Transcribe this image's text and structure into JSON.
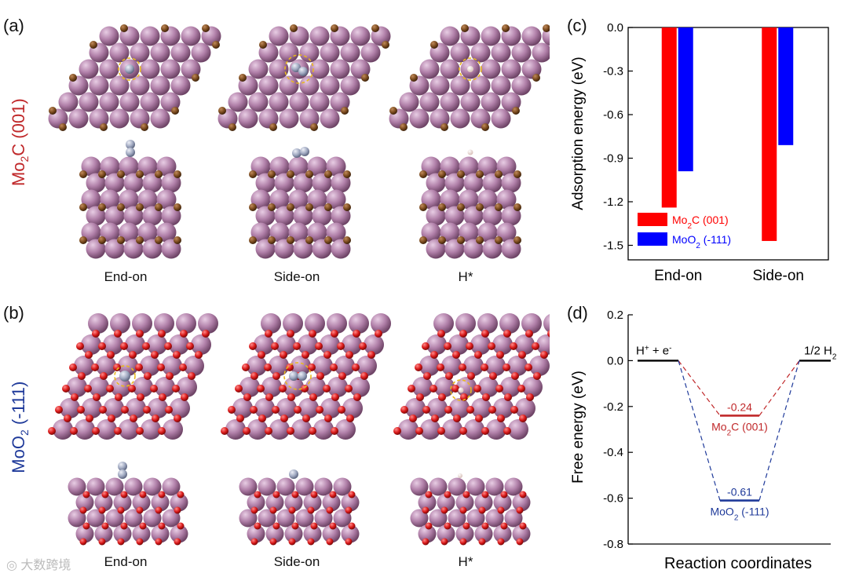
{
  "panels": {
    "a_label": "(a)",
    "b_label": "(b)",
    "c_label": "(c)",
    "d_label": "(d)"
  },
  "structures": {
    "mo2c_title_main": "Mo",
    "mo2c_title_sub": "2",
    "mo2c_title_rest": "C (001)",
    "moo2_title_main": "MoO",
    "moo2_title_sub": "2",
    "moo2_title_rest": " (-111)",
    "captions_a": [
      "End-on",
      "Side-on",
      "H*"
    ],
    "captions_b": [
      "End-on",
      "Side-on",
      "H*"
    ]
  },
  "colors": {
    "mo2c": "#ff0000",
    "moo2": "#0000ff",
    "mo_atom": "#b07fa8",
    "c_atom": "#7a4a1e",
    "o_atom": "#d81818",
    "n_atom": "#9fa8c0",
    "mo2c_label_text": "#c0282a",
    "moo2_label_text": "#1f3a9a",
    "highlight_circle": "#e8b820"
  },
  "watermark": "大数跨境",
  "chart_data": [
    {
      "type": "bar",
      "panel": "c",
      "ylabel": "Adsorption energy (eV)",
      "categories": [
        "End-on",
        "Side-on"
      ],
      "series": [
        {
          "name": "Mo2C (001)",
          "name_main": "Mo",
          "name_sub": "2",
          "name_rest": "C (001)",
          "values": [
            -1.24,
            -1.47
          ]
        },
        {
          "name": "MoO2 (-111)",
          "name_main": "MoO",
          "name_sub": "2",
          "name_rest": " (-111)",
          "values": [
            -0.99,
            -0.81
          ]
        }
      ],
      "ylim": [
        -1.6,
        0.0
      ],
      "yticks": [
        "0.0",
        "-0.3",
        "-0.6",
        "-0.9",
        "-1.2",
        "-1.5"
      ],
      "legend_position": "bottom-left"
    },
    {
      "type": "line",
      "panel": "d",
      "ylabel": "Free energy (eV)",
      "xlabel": "Reaction coordinates",
      "ylim": [
        -0.8,
        0.2
      ],
      "yticks": [
        "0.2",
        "0.0",
        "-0.2",
        "-0.4",
        "-0.6",
        "-0.8"
      ],
      "levels": {
        "start": {
          "label_main": "H",
          "label_sup1": "+",
          "label_mid": " + e",
          "label_sup2": "-",
          "value": 0.0
        },
        "end": {
          "label_main": "1/2 H",
          "label_sub": "2",
          "value": 0.0
        }
      },
      "series": [
        {
          "name": "Mo2C (001)",
          "name_main": "Mo",
          "name_sub": "2",
          "name_rest": "C (001)",
          "value": -0.24,
          "value_label": "-0.24"
        },
        {
          "name": "MoO2 (-111)",
          "name_main": "MoO",
          "name_sub": "2",
          "name_rest": " (-111)",
          "value": -0.61,
          "value_label": "-0.61"
        }
      ]
    }
  ]
}
